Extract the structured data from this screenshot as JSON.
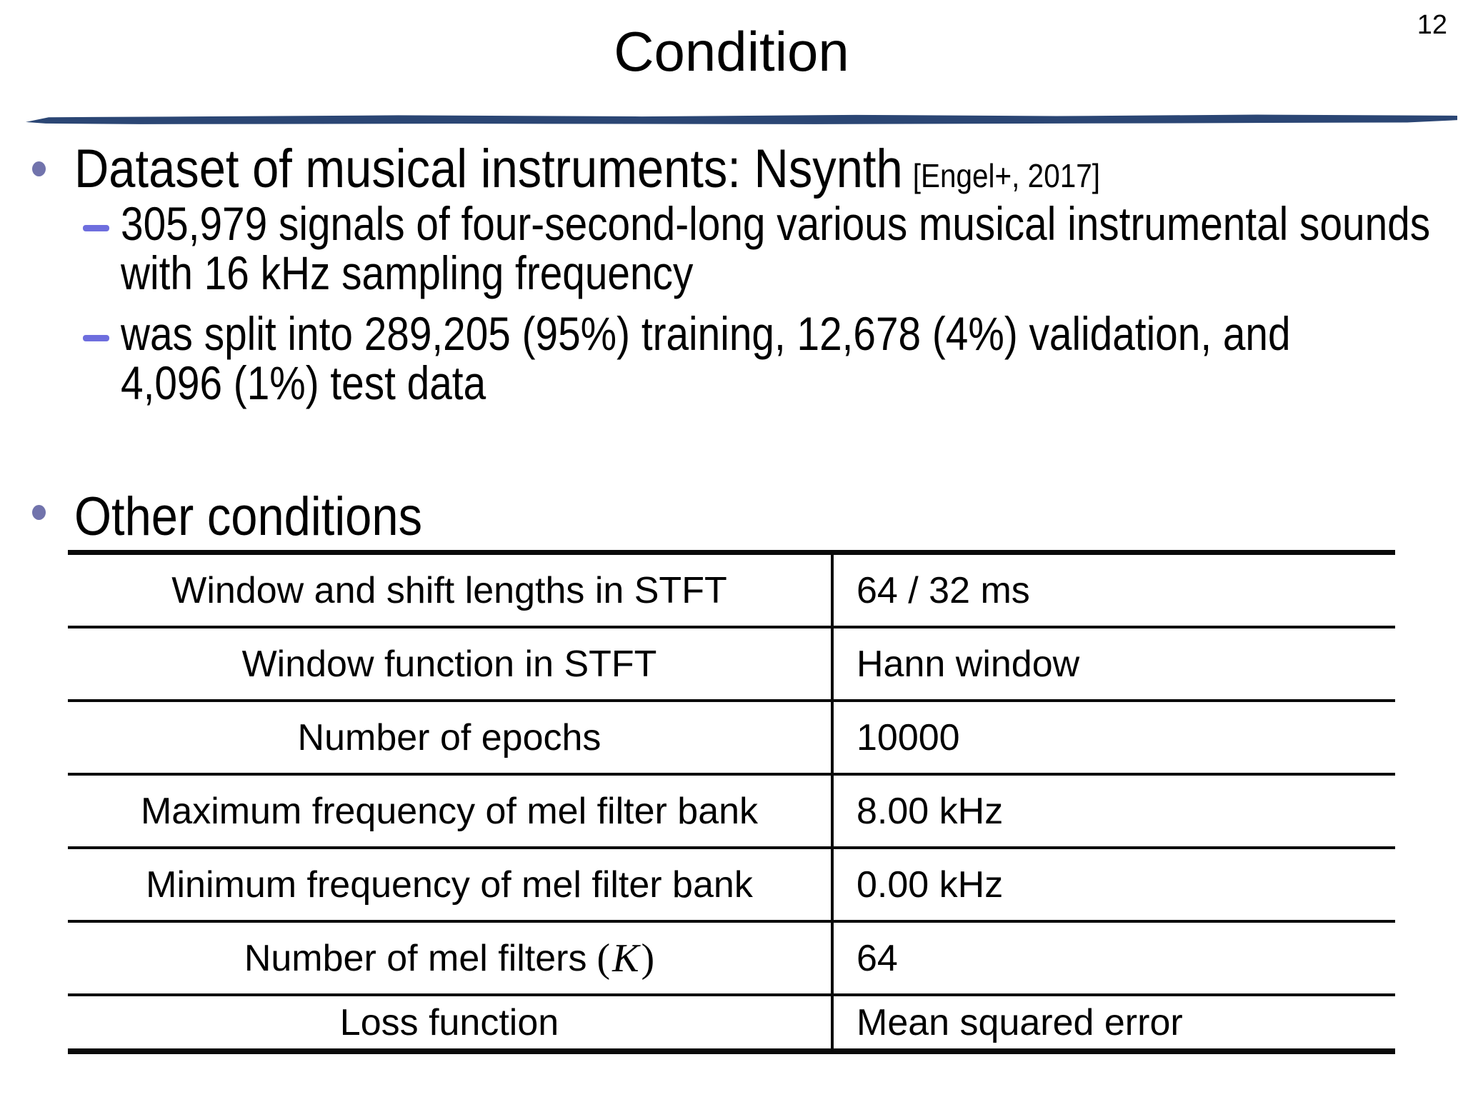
{
  "slide": {
    "page_number": "12",
    "title": "Condition"
  },
  "bullets": {
    "dataset": {
      "text": "Dataset of musical instruments: Nsynth",
      "cite": "[Engel+, 2017]",
      "sub1": {
        "lines": [
          "305,979 signals of four-second-long various musical instrumental sounds",
          "with 16 kHz sampling frequency"
        ]
      },
      "sub2": {
        "lines": [
          "was split into 289,205 (95%) training, 12,678 (4%) validation, and",
          "4,096 (1%) test data"
        ]
      }
    },
    "other": {
      "text": "Other conditions"
    }
  },
  "table": {
    "rows": [
      {
        "label": "Window and shift lengths in STFT",
        "value": "64 / 32 ms"
      },
      {
        "label": "Window function in STFT",
        "value": "Hann window"
      },
      {
        "label": "Number of epochs",
        "value": "10000"
      },
      {
        "label": "Maximum frequency of mel filter bank",
        "value": "8.00 kHz"
      },
      {
        "label": "Minimum frequency of mel filter bank",
        "value": "0.00 kHz"
      },
      {
        "label": "Number of mel filters",
        "math_open": "(",
        "math_var": "K",
        "math_close": ")",
        "value": "64"
      },
      {
        "label": "Loss function",
        "value": "Mean squared error"
      }
    ]
  },
  "colors": {
    "divider_color": "#2b4674",
    "bullet_dot_color": "#7173ac",
    "bullet_dash_color": "#6e6ede",
    "table_line_color": "#0a0a0a",
    "text_color": "#000000"
  }
}
